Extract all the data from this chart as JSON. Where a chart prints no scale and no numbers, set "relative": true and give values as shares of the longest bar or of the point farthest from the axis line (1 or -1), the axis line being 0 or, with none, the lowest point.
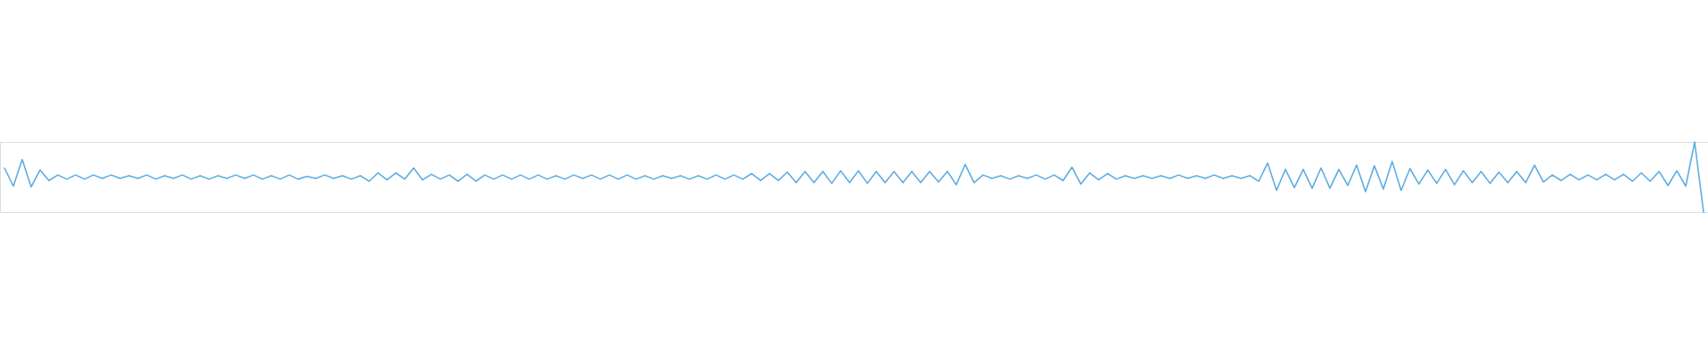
{
  "chart_data": {
    "type": "line",
    "relative": true,
    "color": "#5dade2",
    "categories": [
      null,
      null,
      null,
      null,
      null,
      null,
      null,
      null,
      null,
      null,
      null,
      null,
      null,
      null,
      null,
      null,
      null,
      null,
      null,
      null,
      null,
      null,
      null,
      null,
      null,
      null,
      null,
      null,
      null,
      null,
      null,
      null,
      null,
      null,
      null,
      null,
      null,
      null,
      null,
      null,
      null,
      null,
      null,
      null,
      null,
      null,
      null,
      null,
      null,
      null,
      null,
      null,
      null,
      null,
      null,
      null,
      null,
      null,
      null,
      null,
      null,
      null,
      null,
      null,
      null,
      null,
      null,
      null,
      null,
      null,
      null,
      null,
      null,
      null,
      null,
      null,
      null,
      null,
      null,
      null,
      null,
      null,
      null,
      null,
      null,
      null,
      null,
      null,
      null,
      null,
      null,
      null,
      null,
      null,
      null,
      null,
      null,
      null,
      null,
      null,
      null,
      null,
      null,
      null,
      null,
      null,
      null,
      null,
      null,
      null,
      null,
      null,
      null,
      null,
      null,
      null,
      null,
      null,
      null,
      null,
      null,
      null,
      null,
      null,
      null,
      null,
      null,
      null,
      null,
      null,
      null,
      null,
      null,
      null,
      null,
      null,
      null,
      null,
      null,
      null,
      null,
      null,
      null,
      null,
      null,
      null,
      null,
      null,
      null,
      null,
      null,
      null,
      null,
      null,
      null,
      null,
      null,
      null,
      null,
      null,
      null,
      null,
      null,
      null,
      null,
      null,
      null,
      null,
      null,
      null,
      null,
      null,
      null,
      null,
      null,
      null,
      null,
      null,
      null,
      null,
      null,
      null,
      null,
      null,
      null,
      null,
      null,
      null,
      null,
      null,
      null,
      null
    ],
    "values": [
      0.63,
      0.37,
      0.75,
      0.36,
      0.6,
      0.45,
      0.53,
      0.47,
      0.53,
      0.47,
      0.53,
      0.48,
      0.53,
      0.48,
      0.52,
      0.48,
      0.53,
      0.47,
      0.52,
      0.48,
      0.53,
      0.47,
      0.52,
      0.47,
      0.52,
      0.48,
      0.53,
      0.48,
      0.53,
      0.47,
      0.52,
      0.47,
      0.53,
      0.47,
      0.51,
      0.48,
      0.53,
      0.48,
      0.52,
      0.47,
      0.52,
      0.44,
      0.56,
      0.46,
      0.56,
      0.47,
      0.63,
      0.46,
      0.54,
      0.47,
      0.53,
      0.44,
      0.54,
      0.44,
      0.53,
      0.47,
      0.53,
      0.47,
      0.53,
      0.47,
      0.53,
      0.47,
      0.52,
      0.47,
      0.53,
      0.48,
      0.53,
      0.47,
      0.53,
      0.47,
      0.53,
      0.47,
      0.52,
      0.47,
      0.52,
      0.48,
      0.52,
      0.47,
      0.52,
      0.47,
      0.53,
      0.47,
      0.53,
      0.47,
      0.55,
      0.45,
      0.55,
      0.45,
      0.57,
      0.42,
      0.58,
      0.42,
      0.58,
      0.41,
      0.59,
      0.42,
      0.59,
      0.41,
      0.58,
      0.42,
      0.58,
      0.42,
      0.58,
      0.42,
      0.58,
      0.43,
      0.58,
      0.39,
      0.68,
      0.42,
      0.53,
      0.48,
      0.52,
      0.47,
      0.52,
      0.48,
      0.53,
      0.47,
      0.53,
      0.45,
      0.64,
      0.4,
      0.56,
      0.46,
      0.55,
      0.47,
      0.52,
      0.48,
      0.52,
      0.48,
      0.52,
      0.48,
      0.53,
      0.48,
      0.52,
      0.48,
      0.53,
      0.48,
      0.52,
      0.48,
      0.52,
      0.44,
      0.7,
      0.31,
      0.61,
      0.35,
      0.61,
      0.34,
      0.63,
      0.34,
      0.61,
      0.38,
      0.67,
      0.29,
      0.66,
      0.33,
      0.72,
      0.31,
      0.62,
      0.4,
      0.6,
      0.41,
      0.61,
      0.39,
      0.59,
      0.42,
      0.58,
      0.41,
      0.57,
      0.42,
      0.58,
      0.42,
      0.67,
      0.43,
      0.53,
      0.45,
      0.54,
      0.46,
      0.53,
      0.46,
      0.54,
      0.46,
      0.54,
      0.44,
      0.56,
      0.44,
      0.58,
      0.38,
      0.59,
      0.37,
      1,
      0
    ]
  }
}
